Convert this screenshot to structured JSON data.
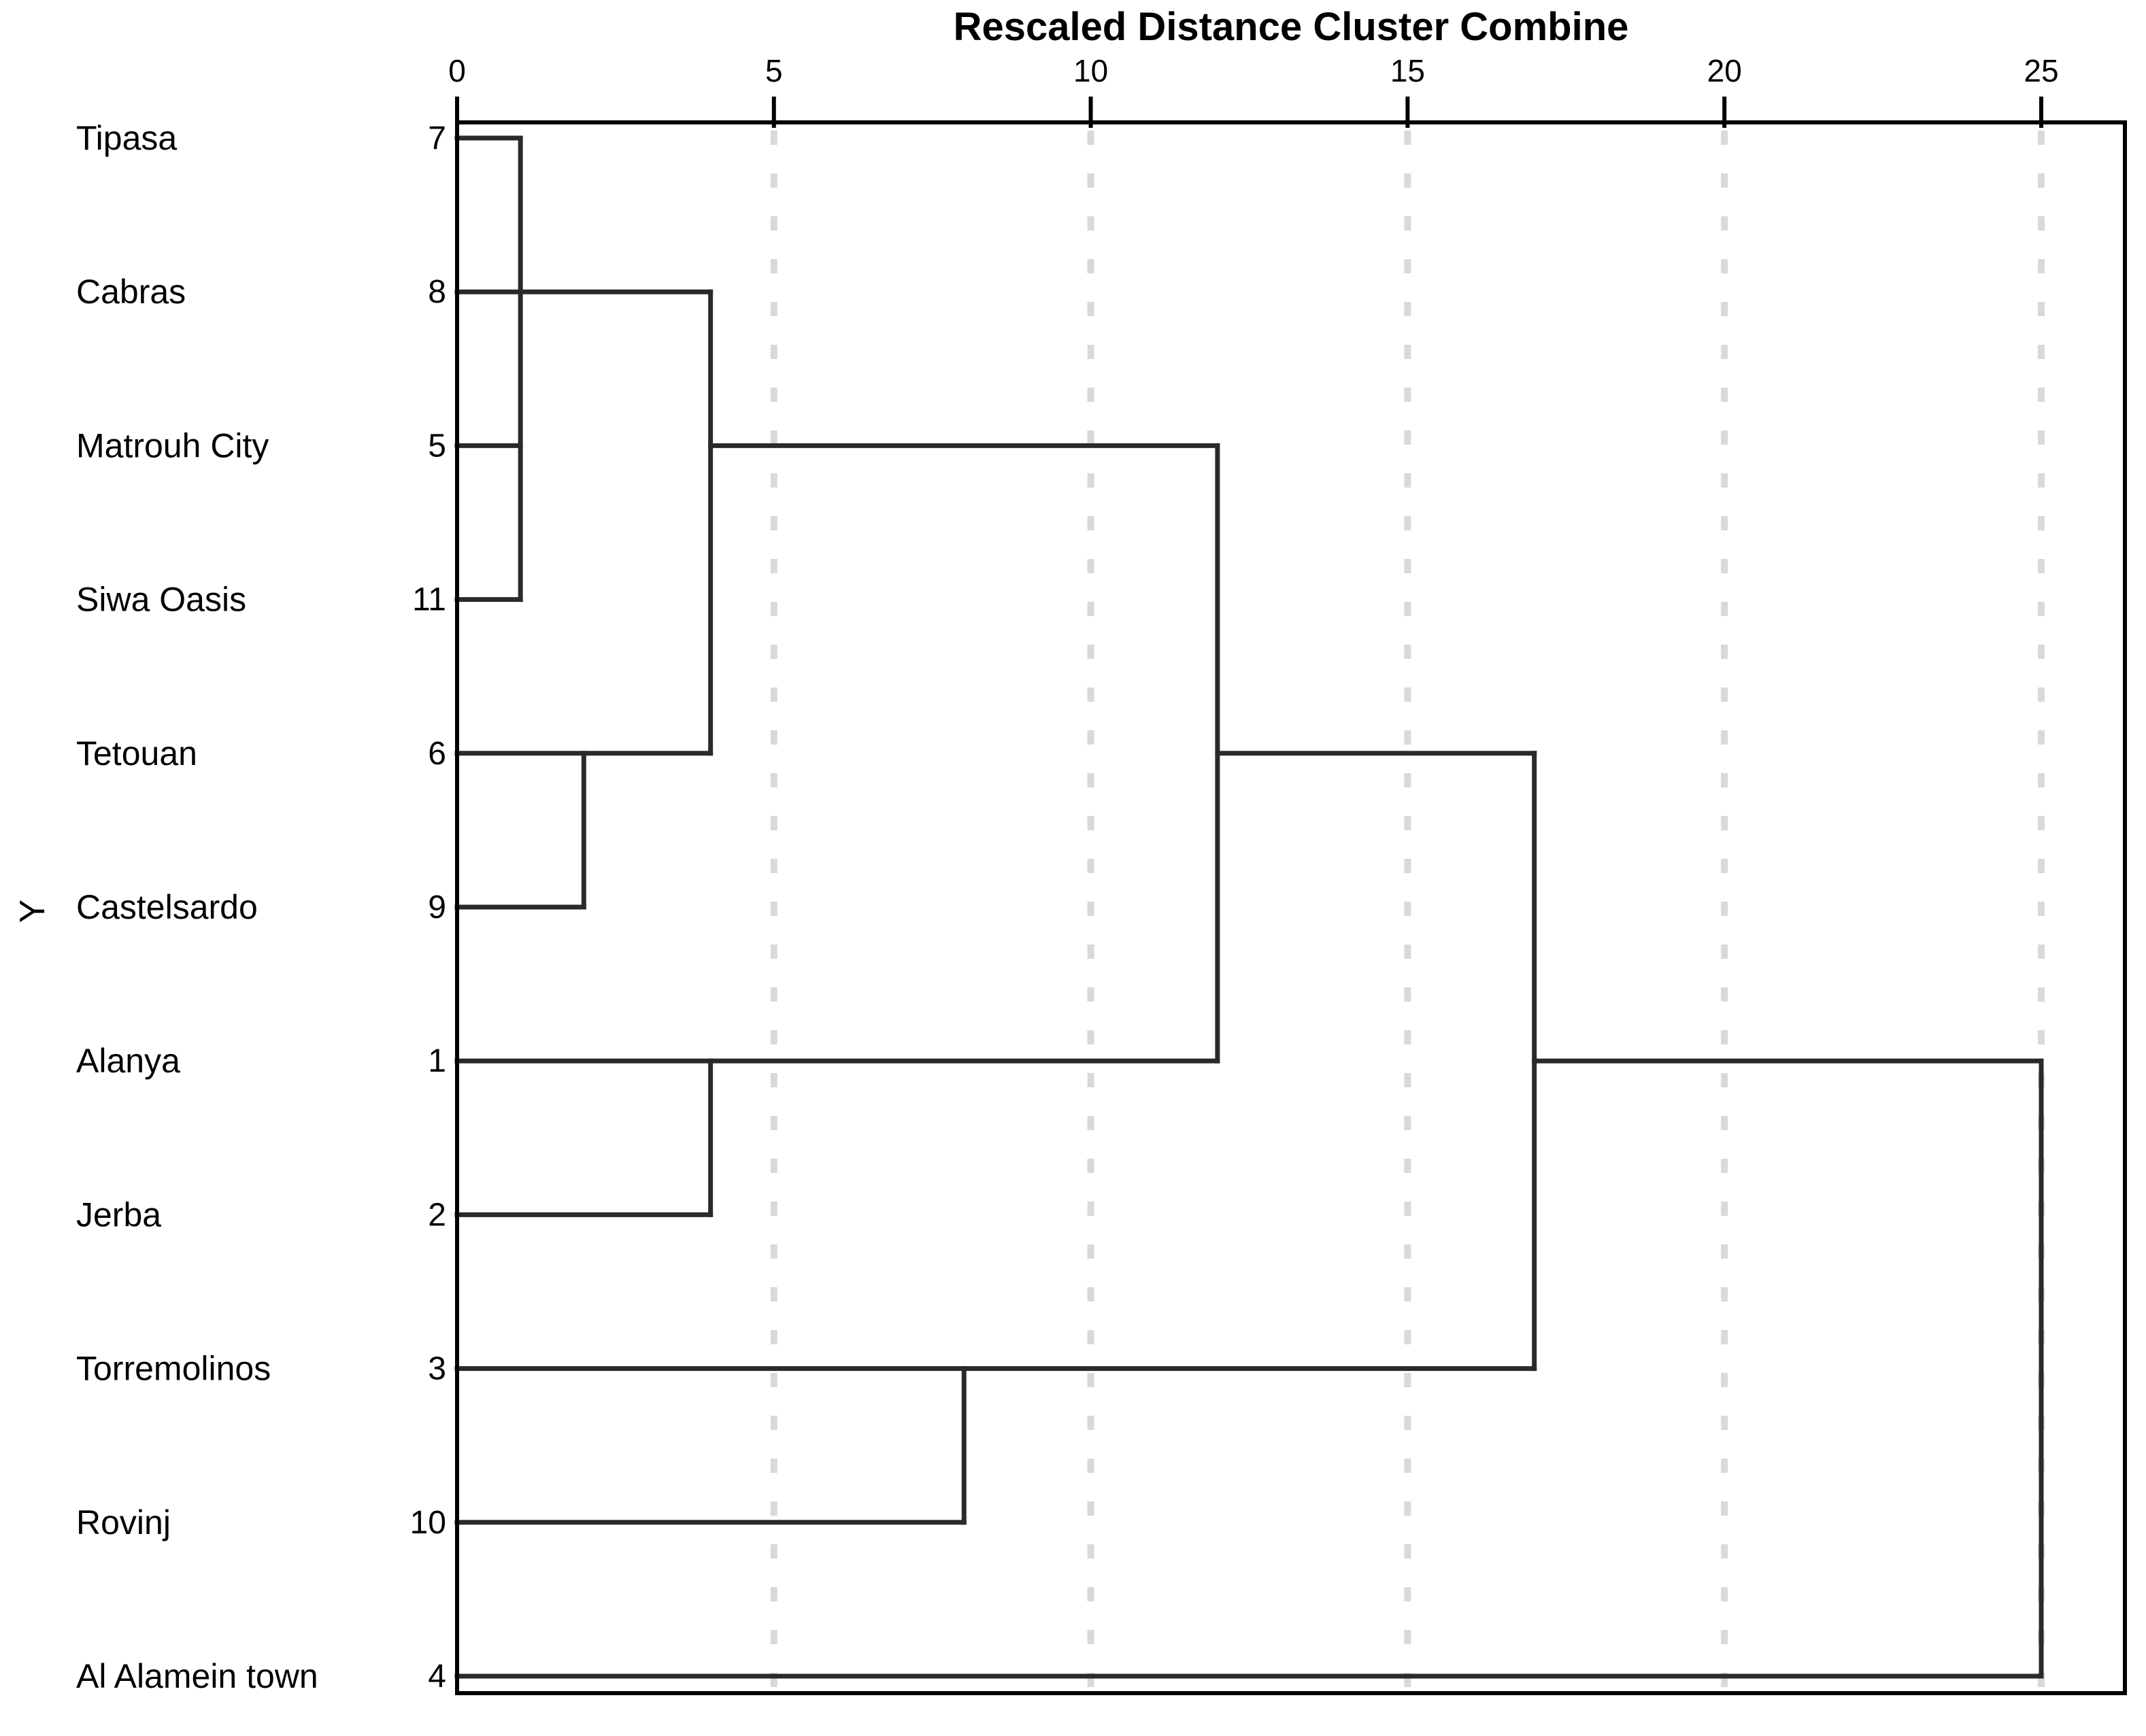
{
  "title": "Rescaled Distance Cluster Combine",
  "colors": {
    "branch": "#2a2a2a",
    "frame": "#000000",
    "gridline": "#d9d9d9",
    "text": "#000000",
    "background": "#ffffff"
  },
  "chart_data": {
    "type": "dendrogram",
    "orientation": "horizontal",
    "title": "Rescaled Distance Cluster Combine",
    "xlabel": "Rescaled Distance Cluster Combine",
    "ylabel": "Y",
    "xlim": [
      0,
      25
    ],
    "axis_ticks": [
      0,
      5,
      10,
      15,
      20,
      25
    ],
    "grid_dashed_at": [
      5,
      10,
      15,
      20,
      25
    ],
    "legend": "none",
    "leaves": [
      {
        "label": "Tipasa",
        "case": "7"
      },
      {
        "label": "Cabras",
        "case": "8"
      },
      {
        "label": "Matrouh City",
        "case": "5"
      },
      {
        "label": "Siwa Oasis",
        "case": "11"
      },
      {
        "label": "Tetouan",
        "case": "6"
      },
      {
        "label": "Castelsardo",
        "case": "9"
      },
      {
        "label": "Alanya",
        "case": "1"
      },
      {
        "label": "Jerba",
        "case": "2"
      },
      {
        "label": "Torremolinos",
        "case": "3"
      },
      {
        "label": "Rovinj",
        "case": "10"
      },
      {
        "label": "Al Alamein town",
        "case": "4"
      }
    ],
    "merges": [
      {
        "members": [
          "Tipasa(7)",
          "Matrouh City(5)",
          "Siwa Oasis(11)"
        ],
        "distance": 1
      },
      {
        "members": [
          "Tetouan(6)",
          "Castelsardo(9)"
        ],
        "distance": 2
      },
      {
        "members": [
          "Cabras(8)",
          "cluster(7,5,11)",
          "cluster(6,9)"
        ],
        "distance": 4
      },
      {
        "members": [
          "Alanya(1)",
          "Jerba(2)"
        ],
        "distance": 4
      },
      {
        "members": [
          "Torremolinos(3)",
          "Rovinj(10)"
        ],
        "distance": 8
      },
      {
        "members": [
          "cluster(7,8,5,11,6,9)",
          "cluster(1,2)"
        ],
        "distance": 12
      },
      {
        "members": [
          "cluster(7,8,5,11,6,9,1,2)",
          "cluster(3,10)"
        ],
        "distance": 17
      },
      {
        "members": [
          "cluster(all-others)",
          "Al Alamein town(4)"
        ],
        "distance": 25
      }
    ],
    "segments": {
      "horizontal": [
        {
          "row": 0,
          "d1": 0,
          "d2": 1
        },
        {
          "row": 1,
          "d1": 0,
          "d2": 4
        },
        {
          "row": 2,
          "d1": 0,
          "d2": 1
        },
        {
          "row": 2,
          "d1": 4,
          "d2": 12
        },
        {
          "row": 3,
          "d1": 0,
          "d2": 1
        },
        {
          "row": 4,
          "d1": 0,
          "d2": 4
        },
        {
          "row": 5,
          "d1": 0,
          "d2": 2
        },
        {
          "row": 6,
          "d1": 0,
          "d2": 12
        },
        {
          "row": 7,
          "d1": 0,
          "d2": 4
        },
        {
          "row": 8,
          "d1": 0,
          "d2": 17
        },
        {
          "row": 9,
          "d1": 0,
          "d2": 8
        },
        {
          "row": 10,
          "d1": 0,
          "d2": 25
        },
        {
          "row": 4,
          "d1": 12,
          "d2": 17
        },
        {
          "row": 6,
          "d1": 17,
          "d2": 25
        }
      ],
      "vertical": [
        {
          "d": 1,
          "row1": 0,
          "row2": 3
        },
        {
          "d": 2,
          "row1": 4,
          "row2": 5
        },
        {
          "d": 4,
          "row1": 1,
          "row2": 4
        },
        {
          "d": 4,
          "row1": 6,
          "row2": 7
        },
        {
          "d": 8,
          "row1": 8,
          "row2": 9
        },
        {
          "d": 12,
          "row1": 2,
          "row2": 6
        },
        {
          "d": 17,
          "row1": 4,
          "row2": 8
        },
        {
          "d": 25,
          "row1": 6,
          "row2": 10
        }
      ]
    }
  }
}
